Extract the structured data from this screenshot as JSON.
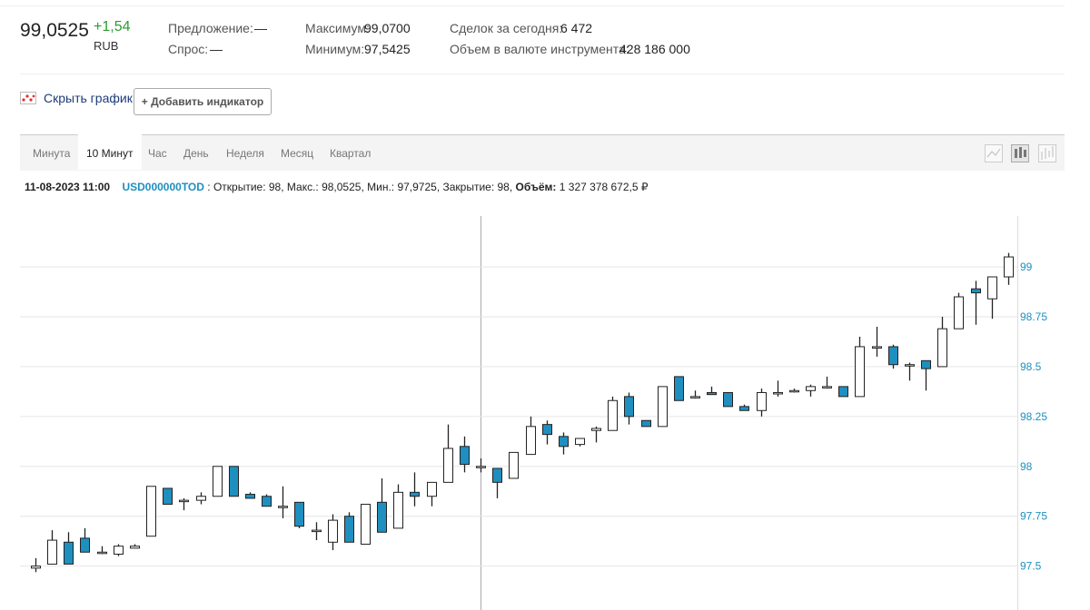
{
  "quote": {
    "last": "99,0525",
    "change": "+1,54",
    "currency": "RUB",
    "offer_label": "Предложение:",
    "offer": "—",
    "bid_label": "Спрос:",
    "bid": "—",
    "max_label": "Максимум:",
    "max": "99,0700",
    "min_label": "Минимум:",
    "min": "97,5425",
    "deals_label": "Сделок за сегодня:",
    "deals": "6 472",
    "volume_label": "Объем в валюте инструмента:",
    "volume": "428 186 000"
  },
  "controls": {
    "hide_chart": "Скрыть график",
    "add_indicator": "+ Добавить индикатор",
    "tabs": [
      "Минута",
      "10 Минут",
      "Час",
      "День",
      "Неделя",
      "Месяц",
      "Квартал"
    ],
    "active_tab": 1
  },
  "info": {
    "datetime": "11-08-2023 11:00",
    "ticker": "USD000000TOD",
    "details": ": Открытие: 98, Макс.: 98,0525, Мин.: 97,9725, Закрытие: 98,",
    "volume_label": "Объём:",
    "volume": "1 327 378 672,5 ₽"
  },
  "chart_data": {
    "type": "candlestick",
    "up_color": "#ffffff",
    "down_color": "#1f8fbf",
    "grid": true,
    "ylim": [
      97.28,
      99.255
    ],
    "yticks": [
      97.5,
      97.75,
      98,
      98.25,
      98.5,
      98.75,
      99
    ],
    "open": [
      97.49,
      97.51,
      97.62,
      97.64,
      97.57,
      97.56,
      97.59,
      97.65,
      97.89,
      97.83,
      97.83,
      97.85,
      98.0,
      97.86,
      97.85,
      97.8,
      97.82,
      97.68,
      97.62,
      97.75,
      97.61,
      97.82,
      97.69,
      97.87,
      97.85,
      97.92,
      98.1,
      98.0,
      97.99,
      97.94,
      98.06,
      98.21,
      98.15,
      98.11,
      98.18,
      98.18,
      98.35,
      98.23,
      98.2,
      98.45,
      98.35,
      98.37,
      98.37,
      98.3,
      98.28,
      98.37,
      98.38,
      98.38,
      98.4,
      98.4,
      98.35,
      98.6,
      98.6,
      98.51,
      98.53,
      98.5,
      98.69,
      98.89,
      98.84,
      98.95
    ],
    "high": [
      97.54,
      97.68,
      97.67,
      97.69,
      97.6,
      97.61,
      97.61,
      97.9,
      97.89,
      97.84,
      97.87,
      98.0,
      98.0,
      97.87,
      97.86,
      97.9,
      97.82,
      97.72,
      97.76,
      97.77,
      97.81,
      97.94,
      97.91,
      97.97,
      97.92,
      98.21,
      98.15,
      98.04,
      97.99,
      98.07,
      98.25,
      98.23,
      98.17,
      98.14,
      98.2,
      98.35,
      98.37,
      98.23,
      98.4,
      98.45,
      98.38,
      98.4,
      98.37,
      98.31,
      98.39,
      98.43,
      98.39,
      98.41,
      98.45,
      98.4,
      98.65,
      98.7,
      98.61,
      98.52,
      98.53,
      98.75,
      98.87,
      98.93,
      98.95,
      99.07
    ],
    "low": [
      97.47,
      97.51,
      97.51,
      97.57,
      97.56,
      97.55,
      97.59,
      97.65,
      97.81,
      97.78,
      97.81,
      97.85,
      97.85,
      97.84,
      97.8,
      97.74,
      97.69,
      97.63,
      97.58,
      97.62,
      97.61,
      97.67,
      97.69,
      97.8,
      97.8,
      97.92,
      97.97,
      97.97,
      97.84,
      97.94,
      98.06,
      98.11,
      98.06,
      98.1,
      98.12,
      98.18,
      98.21,
      98.2,
      98.2,
      98.33,
      98.34,
      98.36,
      98.3,
      98.28,
      98.25,
      98.35,
      98.37,
      98.35,
      98.39,
      98.35,
      98.35,
      98.55,
      98.49,
      98.43,
      98.38,
      98.5,
      98.69,
      98.71,
      98.74,
      98.91
    ],
    "close": [
      97.5,
      97.63,
      97.51,
      97.57,
      97.57,
      97.6,
      97.6,
      97.9,
      97.81,
      97.83,
      97.85,
      98.0,
      97.85,
      97.84,
      97.8,
      97.8,
      97.7,
      97.68,
      97.73,
      97.62,
      97.81,
      97.67,
      97.87,
      97.85,
      97.92,
      98.09,
      98.01,
      98.0,
      97.92,
      98.07,
      98.2,
      98.16,
      98.1,
      98.14,
      98.19,
      98.33,
      98.25,
      98.2,
      98.4,
      98.33,
      98.35,
      98.36,
      98.3,
      98.28,
      98.37,
      98.37,
      98.38,
      98.4,
      98.4,
      98.35,
      98.6,
      98.6,
      98.51,
      98.51,
      98.49,
      98.69,
      98.85,
      98.87,
      98.95,
      99.05
    ]
  }
}
